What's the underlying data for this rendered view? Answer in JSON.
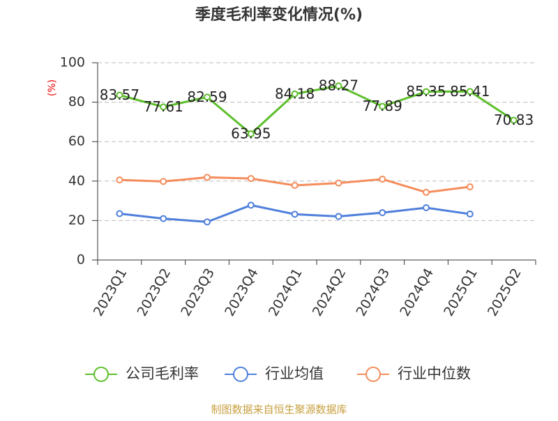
{
  "chart_data": {
    "type": "line",
    "title": "季度毛利率变化情况(%)",
    "y_label": "(%)",
    "categories": [
      "2023Q1",
      "2023Q2",
      "2023Q3",
      "2023Q4",
      "2024Q1",
      "2024Q2",
      "2024Q3",
      "2024Q4",
      "2025Q1",
      "2025Q2"
    ],
    "series": [
      {
        "name": "公司毛利率",
        "color": "#5cbf2a",
        "values": [
          83.57,
          77.61,
          82.59,
          63.95,
          84.18,
          88.27,
          77.89,
          85.35,
          85.41,
          70.83
        ],
        "show_labels": true
      },
      {
        "name": "行业均值",
        "color": "#4e7fdb",
        "values": [
          23.5,
          21,
          19.3,
          27.8,
          23.2,
          22.1,
          24,
          26.5,
          23.3,
          null
        ]
      },
      {
        "name": "行业中位数",
        "color": "#f58c5b",
        "values": [
          40.6,
          39.8,
          41.9,
          41.3,
          37.8,
          39,
          41,
          34.3,
          37.1,
          null
        ]
      }
    ],
    "ylim": [
      0,
      100
    ],
    "yticks": [
      0,
      20,
      40,
      60,
      80,
      100
    ],
    "grid": true,
    "source": "制图数据来自恒生聚源数据库"
  }
}
